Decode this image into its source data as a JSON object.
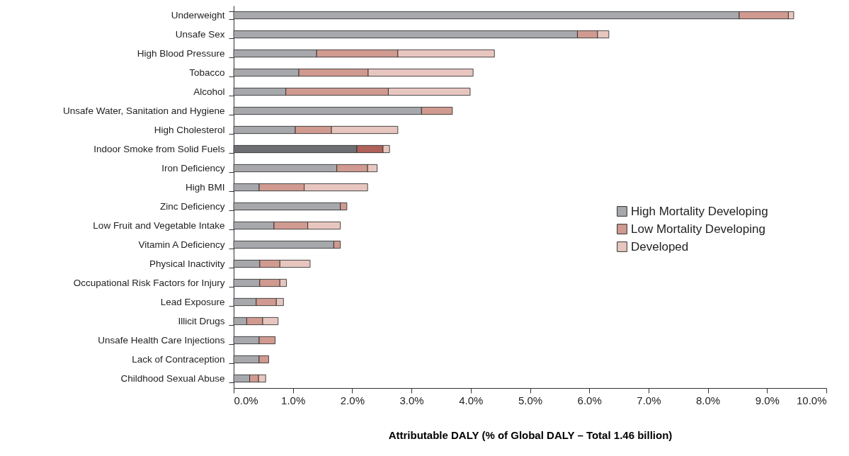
{
  "chart_data": {
    "type": "bar",
    "orientation": "horizontal",
    "stacked": true,
    "xlabel": "Attributable DALY (% of Global DALY – Total 1.46 billion)",
    "categories": [
      "Underweight",
      "Unsafe Sex",
      "High Blood Pressure",
      "Tobacco",
      "Alcohol",
      "Unsafe Water, Sanitation and Hygiene",
      "High Cholesterol",
      "Indoor Smoke from Solid Fuels",
      "Iron Deficiency",
      "High BMI",
      "Zinc Deficiency",
      "Low Fruit and Vegetable Intake",
      "Vitamin A Deficiency",
      "Physical Inactivity",
      "Occupational Risk Factors for Injury",
      "Lead Exposure",
      "Illicit Drugs",
      "Unsafe Health Care Injections",
      "Lack of Contraception",
      "Childhood Sexual Abuse"
    ],
    "series": [
      {
        "name": "High Mortality Developing",
        "color": "#a7a8ab",
        "colors": [
          "#a7a8ab",
          "#a7a8ab",
          "#a7a8ab",
          "#a7a8ab",
          "#a7a8ab",
          "#a7a8ab",
          "#a7a8ab",
          "#6d6e71",
          "#a7a8ab",
          "#a7a8ab",
          "#a7a8ab",
          "#a7a8ab",
          "#a7a8ab",
          "#a7a8ab",
          "#a7a8ab",
          "#a7a8ab",
          "#a7a8ab",
          "#a7a8ab",
          "#a7a8ab",
          "#a7a8ab"
        ],
        "values": [
          8.53,
          5.8,
          1.4,
          1.1,
          0.88,
          3.17,
          1.04,
          2.08,
          1.74,
          0.43,
          1.8,
          0.68,
          1.69,
          0.44,
          0.44,
          0.38,
          0.22,
          0.43,
          0.43,
          0.27
        ]
      },
      {
        "name": "Low Mortality Developing",
        "color": "#d09a90",
        "colors": [
          "#d09a90",
          "#d09a90",
          "#d09a90",
          "#d09a90",
          "#d09a90",
          "#d09a90",
          "#d09a90",
          "#b0625a",
          "#d09a90",
          "#d09a90",
          "#d09a90",
          "#d09a90",
          "#d09a90",
          "#d09a90",
          "#d09a90",
          "#d09a90",
          "#d09a90",
          "#d09a90",
          "#d09a90",
          "#d09a90"
        ],
        "values": [
          0.83,
          0.34,
          1.37,
          1.17,
          1.73,
          0.52,
          0.61,
          0.44,
          0.52,
          0.76,
          0.11,
          0.57,
          0.11,
          0.34,
          0.34,
          0.34,
          0.27,
          0.27,
          0.16,
          0.15
        ]
      },
      {
        "name": "Developed",
        "color": "#e8c6c0",
        "values": [
          0.09,
          0.19,
          1.63,
          1.77,
          1.38,
          null,
          1.12,
          0.11,
          0.16,
          1.07,
          null,
          0.55,
          null,
          0.51,
          0.11,
          0.12,
          0.26,
          null,
          null,
          0.12
        ]
      }
    ],
    "xlim": [
      0,
      10
    ],
    "xticks": [
      {
        "value": 0,
        "label": "0.0%"
      },
      {
        "value": 1,
        "label": "1.0%"
      },
      {
        "value": 2,
        "label": "2.0%"
      },
      {
        "value": 3,
        "label": "3.0%"
      },
      {
        "value": 4,
        "label": "4.0%"
      },
      {
        "value": 5,
        "label": "5.0%"
      },
      {
        "value": 6,
        "label": "6.0%"
      },
      {
        "value": 7,
        "label": "7.0%"
      },
      {
        "value": 8,
        "label": "8.0%"
      },
      {
        "value": 9,
        "label": "9.0%"
      },
      {
        "value": 10,
        "label": "10.0%"
      }
    ],
    "grid": false,
    "legend": "right"
  }
}
